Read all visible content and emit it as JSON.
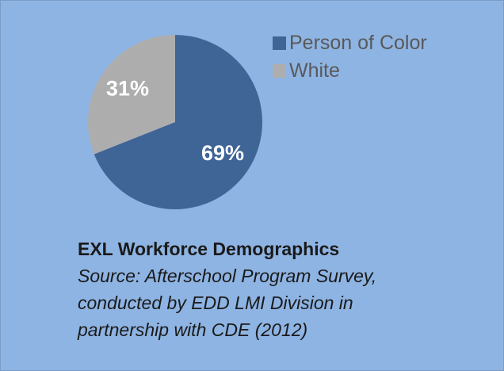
{
  "chart_data": {
    "type": "pie",
    "categories": [
      "Person of Color",
      "White"
    ],
    "values": [
      69,
      31
    ],
    "labels": [
      "69%",
      "31%"
    ],
    "colors": [
      "#3F6496",
      "#ADADAD"
    ],
    "legend_position": "right"
  },
  "caption": {
    "title": "EXL Workforce Demographics",
    "source_lines": [
      "Source: Afterschool Program Survey,",
      "conducted by EDD LMI Division in",
      "partnership with CDE (2012)"
    ]
  }
}
